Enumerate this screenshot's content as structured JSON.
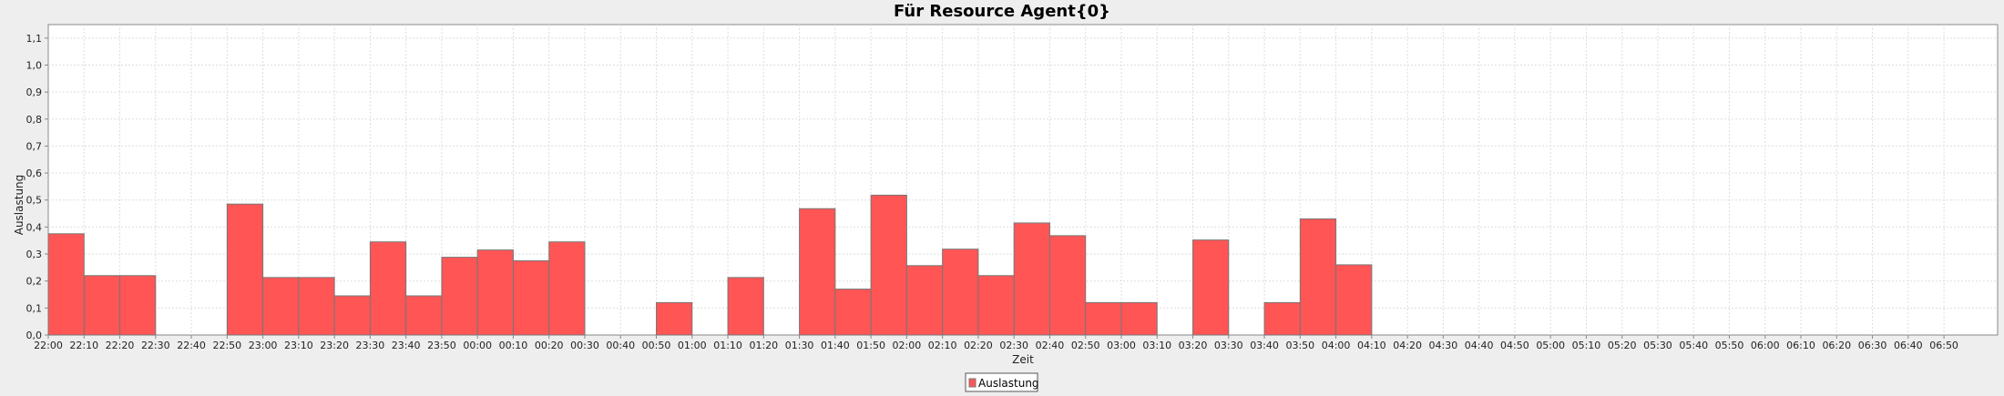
{
  "chart_data": {
    "type": "bar",
    "title": "Für Resource Agent{0}",
    "xlabel": "Zeit",
    "ylabel": "Auslastung",
    "ylim": [
      0,
      1.15
    ],
    "grid": true,
    "legend_position": "bottom-center",
    "bar_color": "#ff5555",
    "bar_edge_color": "#777777",
    "y_ticks": [
      "0,0",
      "0,1",
      "0,2",
      "0,3",
      "0,4",
      "0,5",
      "0,6",
      "0,7",
      "0,8",
      "0,9",
      "1,0",
      "1,1"
    ],
    "x_ticks": [
      "22:00",
      "22:10",
      "22:20",
      "22:30",
      "22:40",
      "22:50",
      "23:00",
      "23:10",
      "23:20",
      "23:30",
      "23:40",
      "23:50",
      "00:00",
      "00:10",
      "00:20",
      "00:30",
      "00:40",
      "00:50",
      "01:00",
      "01:10",
      "01:20",
      "01:30",
      "01:40",
      "01:50",
      "02:00",
      "02:10",
      "02:20",
      "02:30",
      "02:40",
      "02:50",
      "03:00",
      "03:10",
      "03:20",
      "03:30",
      "03:40",
      "03:50",
      "04:00",
      "04:10",
      "04:20",
      "04:30",
      "04:40",
      "04:50",
      "05:00",
      "05:10",
      "05:20",
      "05:30",
      "05:40",
      "05:50",
      "06:00",
      "06:10",
      "06:20",
      "06:30",
      "06:40",
      "06:50"
    ],
    "series": [
      {
        "name": "Auslastung",
        "values": [
          0.375,
          0.22,
          0.22,
          0,
          0,
          0.485,
          0.213,
          0.213,
          0.145,
          0.345,
          0.145,
          0.288,
          0.315,
          0.275,
          0.345,
          0,
          0,
          0.12,
          0,
          0.213,
          0,
          0.468,
          0.17,
          0.518,
          0.257,
          0.318,
          0.22,
          0.415,
          0.368,
          0.12,
          0.12,
          0,
          0.352,
          0,
          0.12,
          0.43,
          0.26,
          0,
          0,
          0,
          0,
          0,
          0,
          0,
          0,
          0,
          0,
          0,
          0,
          0,
          0,
          0,
          0,
          0
        ]
      }
    ]
  }
}
